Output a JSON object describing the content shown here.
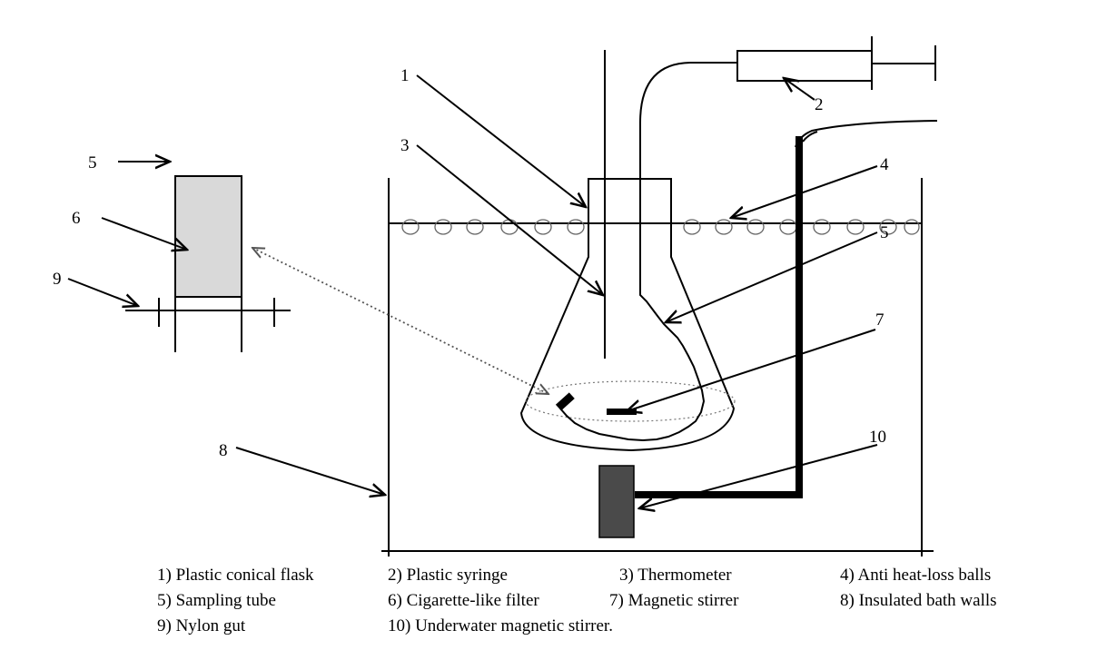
{
  "callouts": {
    "c1": "1",
    "c2": "2",
    "c3": "3",
    "c4": "4",
    "c5": "5",
    "c5_inset": "5",
    "c6": "6",
    "c7": "7",
    "c8": "8",
    "c9": "9",
    "c10": "10"
  },
  "legend": {
    "row1": [
      "1) Plastic conical flask",
      "2) Plastic syringe",
      "3) Thermometer",
      "4) Anti heat-loss balls"
    ],
    "row2": [
      "5) Sampling tube",
      "6) Cigarette-like filter",
      "7) Magnetic stirrer",
      "8) Insulated bath walls"
    ],
    "row3": [
      "9) Nylon gut",
      "10) Underwater magnetic stirrer."
    ]
  },
  "colors": {
    "line": "#000000",
    "filter_fill": "#d9d9d9",
    "stirrer_box": "#4a4a4a",
    "dotted": "#555555"
  }
}
